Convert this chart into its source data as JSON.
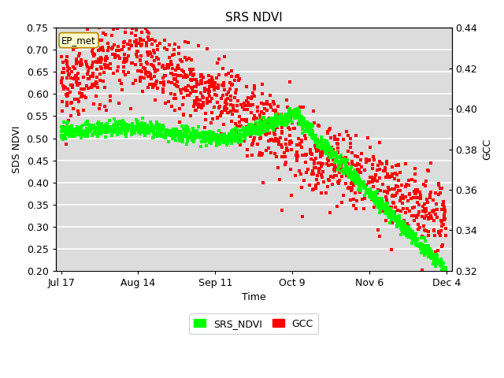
{
  "title": "SRS NDVI",
  "xlabel": "Time",
  "ylabel_left": "SDS NDVI",
  "ylabel_right": "GCC",
  "ylim_left": [
    0.2,
    0.75
  ],
  "ylim_right": [
    0.32,
    0.44
  ],
  "yticks_left": [
    0.2,
    0.25,
    0.3,
    0.35,
    0.4,
    0.45,
    0.5,
    0.55,
    0.6,
    0.65,
    0.7,
    0.75
  ],
  "yticks_right": [
    0.32,
    0.34,
    0.36,
    0.38,
    0.4,
    0.42,
    0.44
  ],
  "xtick_labels": [
    "Jul 17",
    "Aug 14",
    "Sep 11",
    "Oct 9",
    "Nov 6",
    "Dec 4"
  ],
  "background_color": "#dcdcdc",
  "green_color": "#00ff00",
  "red_color": "#ff0000",
  "marker_size": 3,
  "ep_met_label": "EP_met",
  "legend_labels": [
    "SRS_NDVI",
    "GCC"
  ],
  "title_fontsize": 11,
  "axis_fontsize": 9,
  "tick_fontsize": 9,
  "total_days": 140,
  "xtick_days": [
    0,
    28,
    56,
    84,
    112,
    140
  ]
}
